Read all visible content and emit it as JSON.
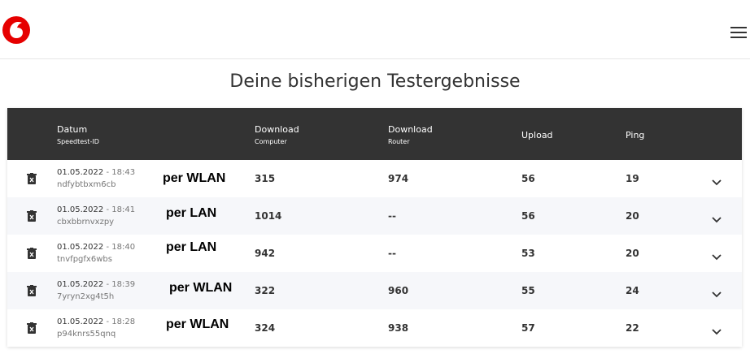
{
  "header": {
    "title": "Deine bisherigen Testergebnisse"
  },
  "table": {
    "columns": [
      {
        "label": "Datum",
        "sublabel": "Speedtest-ID"
      },
      {
        "label": "Download",
        "sublabel": "Computer"
      },
      {
        "label": "Download",
        "sublabel": "Router"
      },
      {
        "label": "Upload"
      },
      {
        "label": "Ping"
      }
    ],
    "rows": [
      {
        "date": "01.05.2022",
        "time": "- 18:43",
        "id": "ndfybtbxm6cb",
        "note": "per WLAN",
        "download_computer": 315,
        "download_router": 974,
        "upload": 56,
        "ping": 19
      },
      {
        "date": "01.05.2022",
        "time": "- 18:41",
        "id": "cbxbbrnvxzpy",
        "note": "per LAN",
        "download_computer": 1014,
        "download_router": "--",
        "upload": 56,
        "ping": 20
      },
      {
        "date": "01.05.2022",
        "time": "- 18:40",
        "id": "tnvfpgfx6wbs",
        "note": "per LAN",
        "download_computer": 942,
        "download_router": "--",
        "upload": 53,
        "ping": 20
      },
      {
        "date": "01.05.2022",
        "time": "- 18:39",
        "id": "7yryn2xg4t5h",
        "note": "per WLAN",
        "download_computer": 322,
        "download_router": 960,
        "upload": 55,
        "ping": 24
      },
      {
        "date": "01.05.2022",
        "time": "- 18:28",
        "id": "p94knrs55qnq",
        "note": "per WLAN",
        "download_computer": 324,
        "download_router": 938,
        "upload": 57,
        "ping": 22
      }
    ]
  }
}
